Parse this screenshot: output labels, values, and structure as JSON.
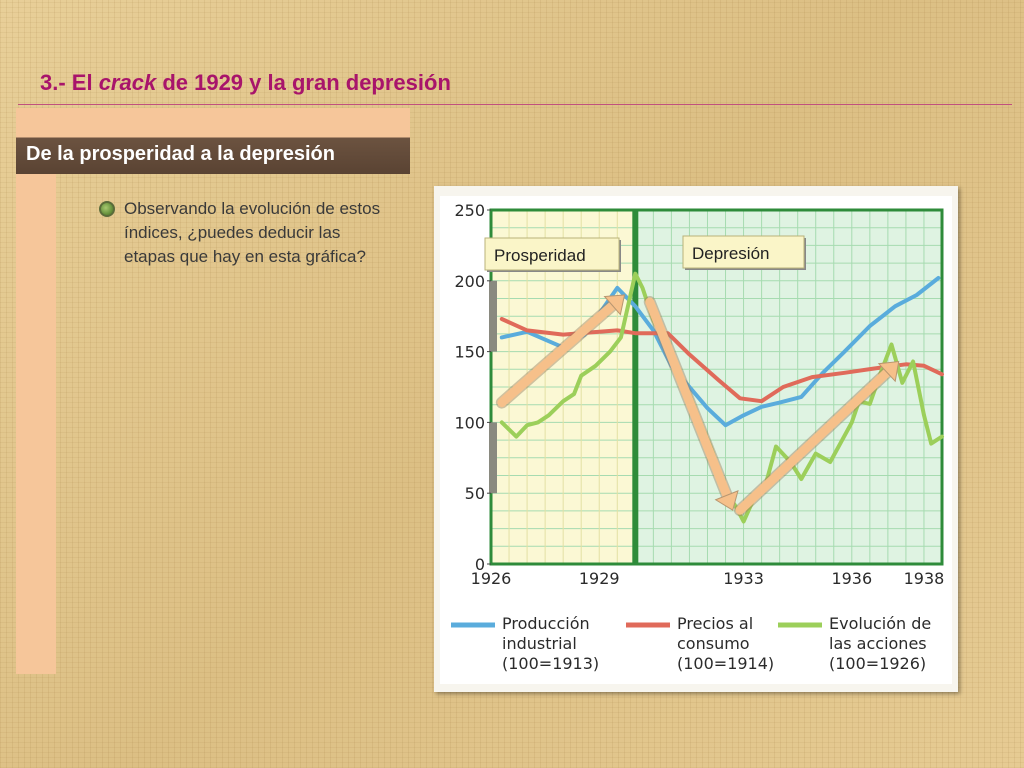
{
  "slide": {
    "title_pre": "3.- El ",
    "title_italic": "crack",
    "title_post": " de 1929 y la gran depresión",
    "section_label": "De la prosperidad a la depresión",
    "bullet_text": "Observando la evolución de estos índices, ¿puedes deducir las etapas que hay en esta gráfica?"
  },
  "colors": {
    "title": "#a8146b",
    "industrial": "#5aacdc",
    "prices": "#e06a5a",
    "stocks": "#9ccf5a",
    "arrow": "#f6c08a",
    "grid_border": "#2e8b3a"
  },
  "chart_data": {
    "type": "line",
    "title": "",
    "xlabel": "",
    "ylabel": "",
    "ylim": [
      0,
      250
    ],
    "yticks": [
      0,
      50,
      100,
      150,
      200,
      250
    ],
    "xlim": [
      1926,
      1938.5
    ],
    "xticks": [
      1926,
      1929,
      1933,
      1936,
      1938
    ],
    "grid": true,
    "stage_labels": [
      {
        "label": "Prosperidad",
        "from": 1926,
        "to": 1930
      },
      {
        "label": "Depresión",
        "from": 1930,
        "to": 1938.5
      }
    ],
    "series": [
      {
        "name": "Producción industrial (100=1913)",
        "legend": [
          "Producción",
          "industrial",
          "(100=1913)"
        ],
        "color_key": "industrial",
        "points": [
          [
            1926.3,
            160
          ],
          [
            1927,
            164
          ],
          [
            1928,
            153
          ],
          [
            1928.6,
            162
          ],
          [
            1929.5,
            195
          ],
          [
            1930,
            182
          ],
          [
            1930.5,
            165
          ],
          [
            1931,
            140
          ],
          [
            1932,
            110
          ],
          [
            1932.5,
            98
          ],
          [
            1933,
            105
          ],
          [
            1933.5,
            111
          ],
          [
            1934,
            114
          ],
          [
            1934.6,
            118
          ],
          [
            1935.2,
            135
          ],
          [
            1935.8,
            150
          ],
          [
            1936.5,
            168
          ],
          [
            1937.2,
            182
          ],
          [
            1937.8,
            190
          ],
          [
            1938.4,
            202
          ]
        ]
      },
      {
        "name": "Precios al consumo (100=1914)",
        "legend": [
          "Precios al",
          "consumo",
          "(100=1914)"
        ],
        "color_key": "prices",
        "points": [
          [
            1926.3,
            173
          ],
          [
            1927,
            165
          ],
          [
            1928,
            162
          ],
          [
            1929,
            164
          ],
          [
            1929.5,
            165
          ],
          [
            1930,
            163
          ],
          [
            1930.9,
            163
          ],
          [
            1931.5,
            148
          ],
          [
            1932.3,
            130
          ],
          [
            1932.9,
            117
          ],
          [
            1933.5,
            115
          ],
          [
            1934.1,
            125
          ],
          [
            1934.9,
            132
          ],
          [
            1935.8,
            135
          ],
          [
            1936.6,
            138
          ],
          [
            1937.5,
            141
          ],
          [
            1938,
            140
          ],
          [
            1938.5,
            134
          ]
        ]
      },
      {
        "name": "Evolución de las acciones (100=1926)",
        "legend": [
          "Evolución de",
          "las acciones",
          "(100=1926)"
        ],
        "color_key": "stocks",
        "points": [
          [
            1926.3,
            100
          ],
          [
            1926.7,
            90
          ],
          [
            1927,
            98
          ],
          [
            1927.3,
            100
          ],
          [
            1927.6,
            105
          ],
          [
            1928,
            115
          ],
          [
            1928.3,
            120
          ],
          [
            1928.5,
            133
          ],
          [
            1928.9,
            140
          ],
          [
            1929.3,
            150
          ],
          [
            1929.6,
            160
          ],
          [
            1930,
            205
          ],
          [
            1930.2,
            195
          ],
          [
            1930.5,
            172
          ],
          [
            1931,
            150
          ],
          [
            1931.3,
            130
          ],
          [
            1931.5,
            120
          ],
          [
            1931.8,
            100
          ],
          [
            1932.1,
            82
          ],
          [
            1932.4,
            60
          ],
          [
            1932.6,
            48
          ],
          [
            1932.8,
            40
          ],
          [
            1933,
            30
          ],
          [
            1933.3,
            47
          ],
          [
            1933.6,
            55
          ],
          [
            1933.9,
            83
          ],
          [
            1934.3,
            72
          ],
          [
            1934.6,
            60
          ],
          [
            1935,
            78
          ],
          [
            1935.4,
            72
          ],
          [
            1935.7,
            86
          ],
          [
            1936,
            100
          ],
          [
            1936.2,
            115
          ],
          [
            1936.5,
            113
          ],
          [
            1936.8,
            135
          ],
          [
            1937.1,
            155
          ],
          [
            1937.4,
            128
          ],
          [
            1937.7,
            143
          ],
          [
            1938,
            105
          ],
          [
            1938.2,
            85
          ],
          [
            1938.5,
            90
          ]
        ]
      }
    ],
    "arrows": [
      {
        "from": [
          1926.3,
          114
        ],
        "to": [
          1929.7,
          190
        ]
      },
      {
        "from": [
          1930.4,
          185
        ],
        "to": [
          1932.7,
          38
        ]
      },
      {
        "from": [
          1932.9,
          38
        ],
        "to": [
          1937.3,
          143
        ]
      }
    ]
  }
}
